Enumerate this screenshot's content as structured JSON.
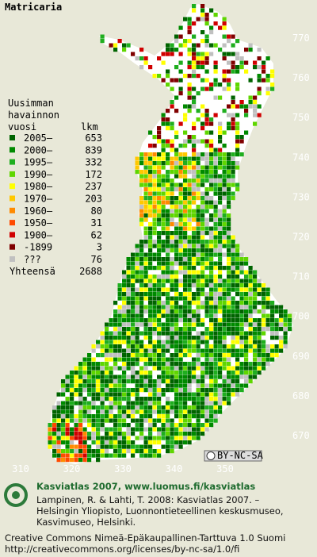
{
  "title": "Matricaria",
  "legend": {
    "heading": [
      "Uusimman",
      "havainnon",
      "vuosi"
    ],
    "count_heading": "lkm",
    "rows": [
      {
        "period": "2005–",
        "count": "653",
        "color": "#006400"
      },
      {
        "period": "2000–",
        "count": "839",
        "color": "#008a00"
      },
      {
        "period": "1995–",
        "count": "332",
        "color": "#1fae1f"
      },
      {
        "period": "1990–",
        "count": "172",
        "color": "#5fd600"
      },
      {
        "period": "1980–",
        "count": "237",
        "color": "#ffff00"
      },
      {
        "period": "1970–",
        "count": "203",
        "color": "#ffc800"
      },
      {
        "period": "1960–",
        "count": "80",
        "color": "#ff8a00"
      },
      {
        "period": "1950–",
        "count": "31",
        "color": "#ff4a00"
      },
      {
        "period": "1900–",
        "count": "62",
        "color": "#d00000"
      },
      {
        "period": "-1899",
        "count": "3",
        "color": "#800000"
      },
      {
        "period": "???",
        "count": "76",
        "color": "#c0c0c0"
      }
    ],
    "total_label": "Yhteensä",
    "total": "2688"
  },
  "map": {
    "yticks": [
      "770",
      "760",
      "750",
      "740",
      "730",
      "720",
      "710",
      "700",
      "690",
      "680",
      "670"
    ],
    "xticks": [
      "310",
      "320",
      "330",
      "340",
      "350"
    ],
    "badge": "BY-NC-SA"
  },
  "footer": {
    "headline": "Kasviatlas 2007, www.luomus.fi/kasviatlas",
    "citation": [
      "Lampinen, R. & Lahti, T. 2008: Kasviatlas 2007. –",
      "Helsingin Yliopisto, Luonnontieteellinen keskusmuseo,",
      "Kasvimuseo, Helsinki."
    ],
    "license": [
      "Creative Commons Nimeä-Epäkaupallinen-Tarttuva 1.0 Suomi",
      "http://creativecommons.org/licenses/by-nc-sa/1.0/fi"
    ]
  }
}
